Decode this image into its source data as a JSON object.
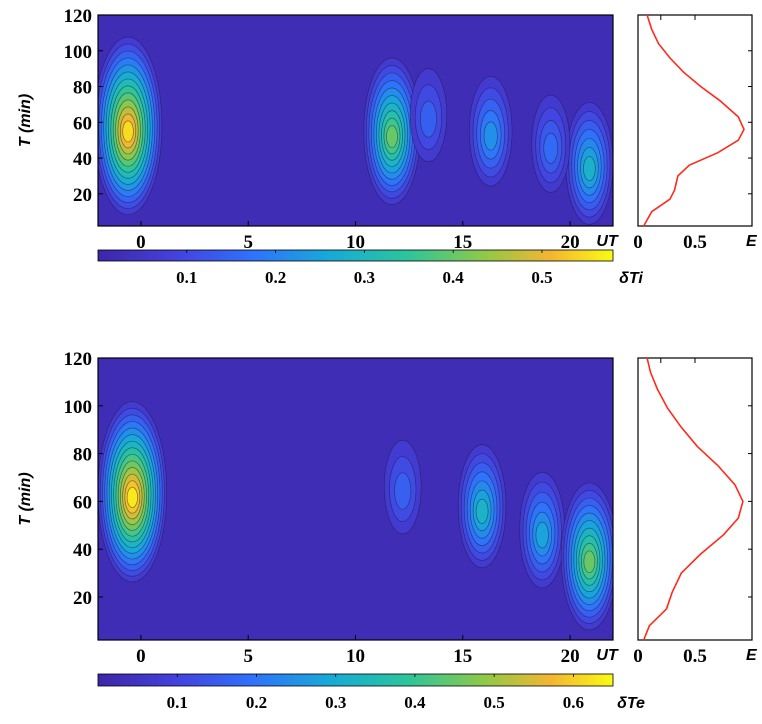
{
  "chart_data": [
    {
      "type": "heatmap",
      "panel": "contour",
      "ylabel": "T (min)",
      "xunit_label": "UT",
      "colorbar_label": "δTi",
      "x_ticks": [
        0,
        5,
        10,
        15,
        20
      ],
      "y_ticks": [
        20,
        40,
        60,
        80,
        100,
        120
      ],
      "xlim": [
        -2,
        22
      ],
      "ylim": [
        2,
        120
      ],
      "colorbar_ticks": [
        "0.1",
        "0.2",
        "0.3",
        "0.4",
        "0.5"
      ],
      "colorbar_range": [
        0,
        0.58
      ],
      "hotspots": [
        {
          "x": -0.6,
          "y": 58,
          "value": 0.55
        },
        {
          "x": 11.7,
          "y": 55,
          "value": 0.4
        },
        {
          "x": 16.3,
          "y": 55,
          "value": 0.22
        },
        {
          "x": 20.9,
          "y": 37,
          "value": 0.28
        },
        {
          "x": 19.1,
          "y": 48,
          "value": 0.16
        },
        {
          "x": 13.4,
          "y": 64,
          "value": 0.14
        }
      ]
    },
    {
      "type": "line",
      "panel": "profile",
      "xlabel": "E",
      "x_ticks": [
        "0",
        "0.5"
      ],
      "xlim": [
        0,
        1
      ],
      "ylim": [
        2,
        120
      ],
      "series": [
        {
          "color": "#ff2a1a",
          "points": [
            [
              0.05,
              2
            ],
            [
              0.12,
              10
            ],
            [
              0.28,
              17
            ],
            [
              0.32,
              22
            ],
            [
              0.35,
              30
            ],
            [
              0.45,
              36
            ],
            [
              0.7,
              43
            ],
            [
              0.88,
              50
            ],
            [
              0.93,
              56
            ],
            [
              0.88,
              63
            ],
            [
              0.72,
              72
            ],
            [
              0.55,
              80
            ],
            [
              0.4,
              88
            ],
            [
              0.28,
              96
            ],
            [
              0.18,
              104
            ],
            [
              0.12,
              112
            ],
            [
              0.08,
              120
            ]
          ]
        }
      ]
    },
    {
      "type": "heatmap",
      "panel": "contour",
      "ylabel": "T (min)",
      "xunit_label": "UT",
      "colorbar_label": "δTe",
      "x_ticks": [
        0,
        5,
        10,
        15,
        20
      ],
      "y_ticks": [
        20,
        40,
        60,
        80,
        100,
        120
      ],
      "xlim": [
        -2,
        22
      ],
      "ylim": [
        2,
        120
      ],
      "colorbar_ticks": [
        "0.1",
        "0.2",
        "0.3",
        "0.4",
        "0.5",
        "0.6"
      ],
      "colorbar_range": [
        0,
        0.65
      ],
      "hotspots": [
        {
          "x": -0.4,
          "y": 64,
          "value": 0.63
        },
        {
          "x": 15.9,
          "y": 58,
          "value": 0.32
        },
        {
          "x": 18.7,
          "y": 48,
          "value": 0.28
        },
        {
          "x": 20.9,
          "y": 37,
          "value": 0.45
        },
        {
          "x": 12.2,
          "y": 66,
          "value": 0.16
        }
      ]
    },
    {
      "type": "line",
      "panel": "profile",
      "xlabel": "E",
      "x_ticks": [
        "0",
        "0.5"
      ],
      "xlim": [
        0,
        1
      ],
      "ylim": [
        2,
        120
      ],
      "series": [
        {
          "color": "#ff2a1a",
          "points": [
            [
              0.05,
              2
            ],
            [
              0.1,
              8
            ],
            [
              0.25,
              15
            ],
            [
              0.3,
              22
            ],
            [
              0.38,
              30
            ],
            [
              0.55,
              38
            ],
            [
              0.75,
              46
            ],
            [
              0.88,
              53
            ],
            [
              0.92,
              60
            ],
            [
              0.85,
              67
            ],
            [
              0.7,
              75
            ],
            [
              0.52,
              83
            ],
            [
              0.38,
              91
            ],
            [
              0.26,
              99
            ],
            [
              0.17,
              107
            ],
            [
              0.11,
              114
            ],
            [
              0.08,
              120
            ]
          ]
        }
      ]
    }
  ]
}
